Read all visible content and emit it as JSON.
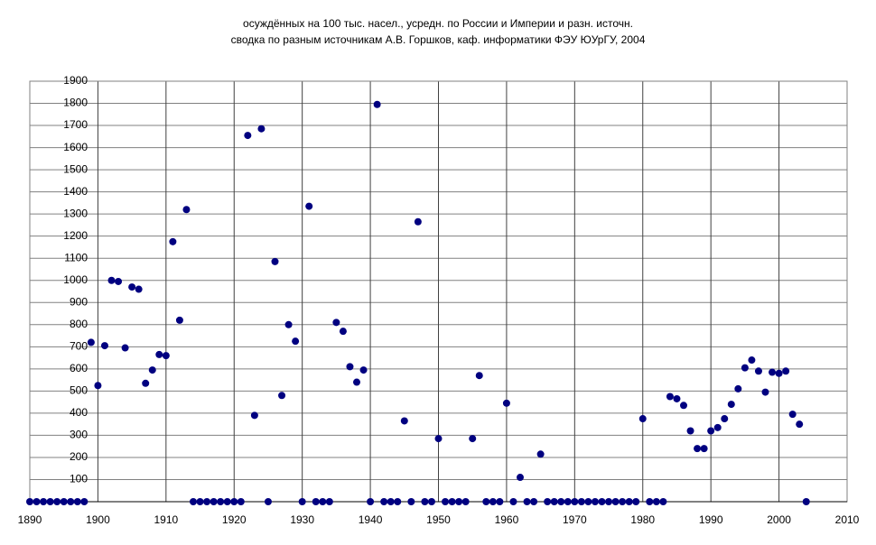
{
  "chart_data": {
    "type": "scatter",
    "title": "осуждённых на 100 тыс. насел., усредн. по России и Империи и разн. источн.",
    "subtitle": "сводка по разным источникам А.В. Горшков, каф. информатики ФЭУ ЮУрГУ, 2004",
    "x": [
      1890,
      1891,
      1892,
      1893,
      1894,
      1895,
      1896,
      1897,
      1898,
      1899,
      1900,
      1901,
      1902,
      1903,
      1904,
      1905,
      1906,
      1907,
      1908,
      1909,
      1910,
      1911,
      1912,
      1913,
      1914,
      1915,
      1916,
      1917,
      1918,
      1919,
      1920,
      1921,
      1922,
      1923,
      1924,
      1925,
      1926,
      1927,
      1928,
      1929,
      1930,
      1931,
      1932,
      1933,
      1934,
      1935,
      1936,
      1937,
      1938,
      1939,
      1940,
      1941,
      1942,
      1943,
      1944,
      1945,
      1946,
      1947,
      1948,
      1949,
      1950,
      1951,
      1952,
      1953,
      1954,
      1955,
      1956,
      1957,
      1958,
      1959,
      1960,
      1961,
      1962,
      1963,
      1964,
      1965,
      1966,
      1967,
      1968,
      1969,
      1970,
      1971,
      1972,
      1973,
      1974,
      1975,
      1976,
      1977,
      1978,
      1979,
      1980,
      1981,
      1982,
      1983,
      1984,
      1985,
      1986,
      1987,
      1988,
      1989,
      1990,
      1991,
      1992,
      1993,
      1994,
      1995,
      1996,
      1997,
      1998,
      1999,
      2000,
      2001,
      2002,
      2003,
      2004
    ],
    "values": [
      0,
      0,
      0,
      0,
      0,
      0,
      0,
      0,
      0,
      720,
      525,
      705,
      1000,
      995,
      695,
      970,
      960,
      535,
      595,
      665,
      660,
      1175,
      820,
      1320,
      0,
      0,
      0,
      0,
      0,
      0,
      0,
      0,
      1655,
      390,
      1685,
      0,
      1085,
      480,
      800,
      725,
      0,
      1335,
      0,
      0,
      0,
      810,
      770,
      610,
      540,
      595,
      0,
      1795,
      0,
      0,
      0,
      365,
      0,
      1265,
      0,
      0,
      285,
      0,
      0,
      0,
      0,
      285,
      570,
      0,
      0,
      0,
      445,
      0,
      110,
      0,
      0,
      215,
      0,
      0,
      0,
      0,
      0,
      0,
      0,
      0,
      0,
      0,
      0,
      0,
      0,
      0,
      375,
      0,
      0,
      0,
      475,
      465,
      435,
      320,
      240,
      240,
      320,
      335,
      375,
      440,
      510,
      605,
      640,
      590,
      495,
      585,
      580,
      590,
      395,
      350,
      0
    ],
    "color": "#000080",
    "xlim": [
      1890,
      2010
    ],
    "xticks": [
      1890,
      1900,
      1910,
      1920,
      1930,
      1940,
      1950,
      1960,
      1970,
      1980,
      1990,
      2000,
      2010
    ],
    "ylim": [
      0,
      1900
    ],
    "yticks": [
      100,
      200,
      300,
      400,
      500,
      600,
      700,
      800,
      900,
      1000,
      1100,
      1200,
      1300,
      1400,
      1500,
      1600,
      1700,
      1800,
      1900
    ],
    "grid": true
  }
}
